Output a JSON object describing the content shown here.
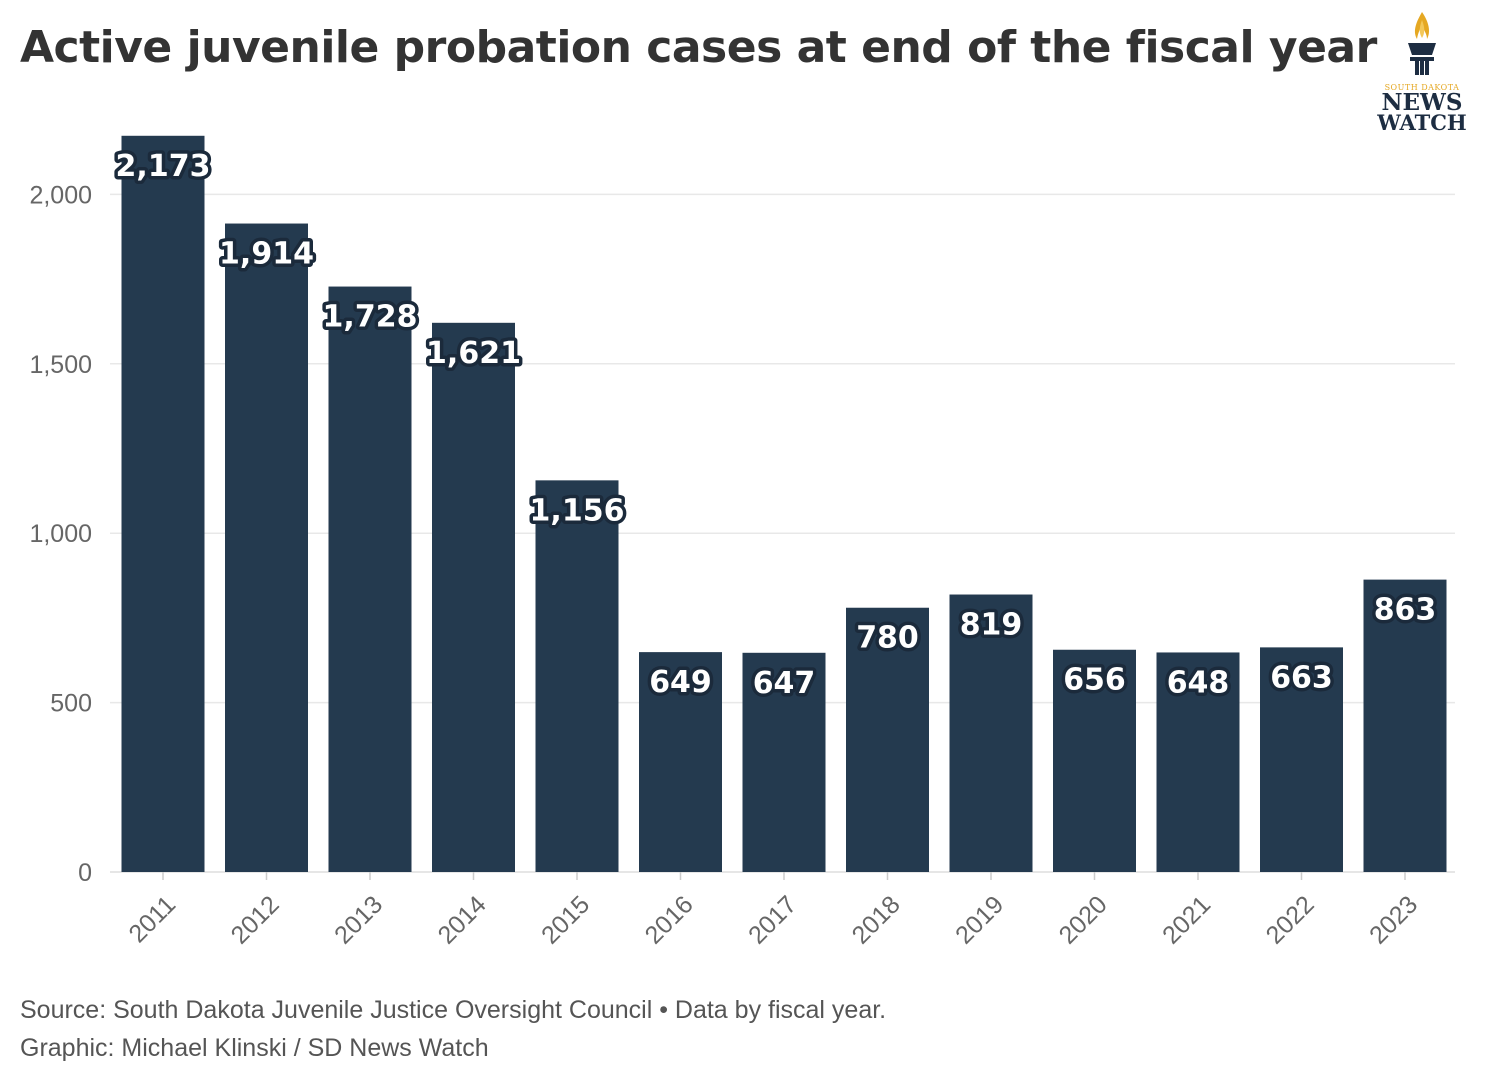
{
  "logo": {
    "line1": "SOUTH DAKOTA",
    "line2": "NEWS",
    "line3": "WATCH",
    "accent": "#e5a823",
    "ink": "#1d2d42"
  },
  "footer": {
    "source": "Source: South Dakota Juvenile Justice Oversight Council • Data by fiscal year.",
    "credit": "Graphic: Michael Klinski / SD News Watch"
  },
  "chart_data": {
    "type": "bar",
    "title": "Active juvenile probation cases at end of the fiscal year",
    "xlabel": "",
    "ylabel": "",
    "categories": [
      "2011",
      "2012",
      "2013",
      "2014",
      "2015",
      "2016",
      "2017",
      "2018",
      "2019",
      "2020",
      "2021",
      "2022",
      "2023"
    ],
    "values": [
      2173,
      1914,
      1728,
      1621,
      1156,
      649,
      647,
      780,
      819,
      656,
      648,
      663,
      863
    ],
    "data_labels": [
      "2,173",
      "1,914",
      "1,728",
      "1,621",
      "1,156",
      "649",
      "647",
      "780",
      "819",
      "656",
      "648",
      "663",
      "863"
    ],
    "ylim": [
      0,
      2200
    ],
    "yticks": [
      0,
      500,
      1000,
      1500,
      2000
    ],
    "ytick_labels": [
      "0",
      "500",
      "1,000",
      "1,500",
      "2,000"
    ],
    "grid": true,
    "bar_color": "#243a4f"
  }
}
